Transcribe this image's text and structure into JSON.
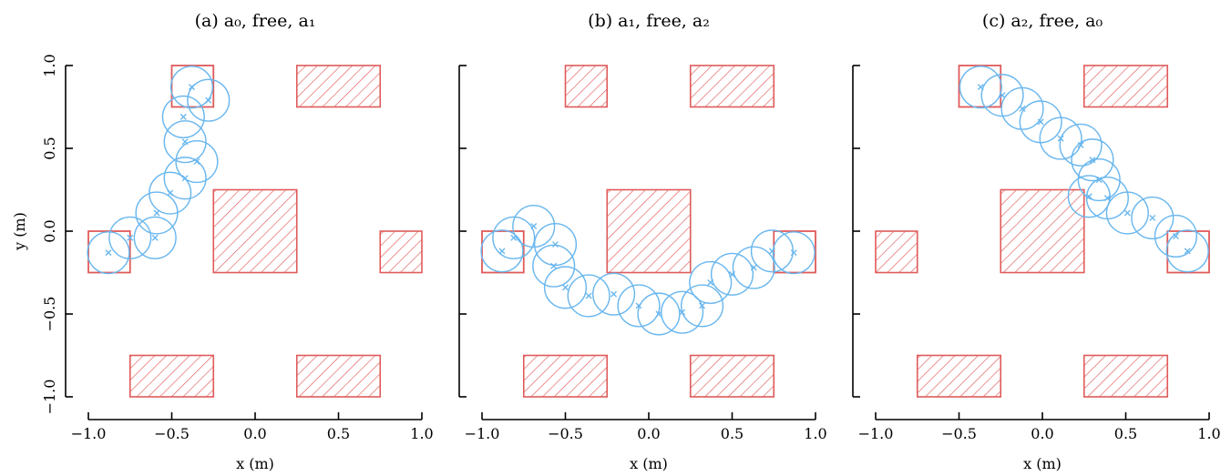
{
  "colors": {
    "obstacle": "#e05a5a",
    "robot": "#6ab7ee",
    "axis": "#000000"
  },
  "chart_data": [
    {
      "type": "scatter",
      "title": "(a) a₀, free, a₁",
      "xlabel": "x (m)",
      "ylabel": "y (m)",
      "xlim": [
        -1.0,
        1.0
      ],
      "ylim": [
        -1.0,
        1.0
      ],
      "xticks": [
        "−1.0",
        "−0.5",
        "0.0",
        "0.5",
        "1.0"
      ],
      "yticks": [
        "−1.0",
        "−0.5",
        "0.0",
        "0.5",
        "1.0"
      ],
      "robot_radius": 0.125,
      "obstacles": [
        {
          "x0": -0.75,
          "y0": -1.0,
          "x1": -0.25,
          "y1": -0.75
        },
        {
          "x0": 0.25,
          "y0": -1.0,
          "x1": 0.75,
          "y1": -0.75
        },
        {
          "x0": -0.25,
          "y0": -0.25,
          "x1": 0.25,
          "y1": 0.25
        },
        {
          "x0": 0.75,
          "y0": -0.25,
          "x1": 1.0,
          "y1": 0.0
        },
        {
          "x0": 0.25,
          "y0": 0.75,
          "x1": 0.75,
          "y1": 1.0
        }
      ],
      "goals": [
        {
          "x0": -1.0,
          "y0": -0.25,
          "x1": -0.75,
          "y1": 0.0
        },
        {
          "x0": -0.5,
          "y0": 0.75,
          "x1": -0.25,
          "y1": 1.0
        }
      ],
      "trajectory": [
        {
          "x": -0.88,
          "y": -0.13
        },
        {
          "x": -0.75,
          "y": -0.04
        },
        {
          "x": -0.6,
          "y": -0.04
        },
        {
          "x": -0.59,
          "y": 0.11
        },
        {
          "x": -0.51,
          "y": 0.23
        },
        {
          "x": -0.42,
          "y": 0.32
        },
        {
          "x": -0.35,
          "y": 0.42
        },
        {
          "x": -0.42,
          "y": 0.54
        },
        {
          "x": -0.43,
          "y": 0.69
        },
        {
          "x": -0.28,
          "y": 0.79
        },
        {
          "x": -0.38,
          "y": 0.87
        }
      ]
    },
    {
      "type": "scatter",
      "title": "(b) a₁, free, a₂",
      "xlabel": "x (m)",
      "ylabel": "",
      "xlim": [
        -1.0,
        1.0
      ],
      "ylim": [
        -1.0,
        1.0
      ],
      "xticks": [
        "−1.0",
        "−0.5",
        "0.0",
        "0.5",
        "1.0"
      ],
      "yticks": [],
      "robot_radius": 0.125,
      "obstacles": [
        {
          "x0": -0.75,
          "y0": -1.0,
          "x1": -0.25,
          "y1": -0.75
        },
        {
          "x0": 0.25,
          "y0": -1.0,
          "x1": 0.75,
          "y1": -0.75
        },
        {
          "x0": -0.25,
          "y0": -0.25,
          "x1": 0.25,
          "y1": 0.25
        },
        {
          "x0": -0.5,
          "y0": 0.75,
          "x1": -0.25,
          "y1": 1.0
        },
        {
          "x0": 0.25,
          "y0": 0.75,
          "x1": 0.75,
          "y1": 1.0
        }
      ],
      "goals": [
        {
          "x0": -1.0,
          "y0": -0.25,
          "x1": -0.75,
          "y1": 0.0
        },
        {
          "x0": 0.75,
          "y0": -0.25,
          "x1": 1.0,
          "y1": 0.0
        }
      ],
      "trajectory": [
        {
          "x": -0.88,
          "y": -0.12
        },
        {
          "x": -0.81,
          "y": -0.04
        },
        {
          "x": -0.69,
          "y": 0.03
        },
        {
          "x": -0.56,
          "y": -0.08
        },
        {
          "x": -0.57,
          "y": -0.21
        },
        {
          "x": -0.5,
          "y": -0.34
        },
        {
          "x": -0.36,
          "y": -0.39
        },
        {
          "x": -0.21,
          "y": -0.38
        },
        {
          "x": -0.06,
          "y": -0.45
        },
        {
          "x": 0.06,
          "y": -0.5
        },
        {
          "x": 0.2,
          "y": -0.49
        },
        {
          "x": 0.32,
          "y": -0.45
        },
        {
          "x": 0.37,
          "y": -0.31
        },
        {
          "x": 0.5,
          "y": -0.26
        },
        {
          "x": 0.63,
          "y": -0.22
        },
        {
          "x": 0.74,
          "y": -0.12
        },
        {
          "x": 0.87,
          "y": -0.13
        }
      ]
    },
    {
      "type": "scatter",
      "title": "(c) a₂, free, a₀",
      "xlabel": "x (m)",
      "ylabel": "",
      "xlim": [
        -1.0,
        1.0
      ],
      "ylim": [
        -1.0,
        1.0
      ],
      "xticks": [
        "−1.0",
        "−0.5",
        "0.0",
        "0.5",
        "1.0"
      ],
      "yticks": [],
      "robot_radius": 0.125,
      "obstacles": [
        {
          "x0": -0.75,
          "y0": -1.0,
          "x1": -0.25,
          "y1": -0.75
        },
        {
          "x0": 0.25,
          "y0": -1.0,
          "x1": 0.75,
          "y1": -0.75
        },
        {
          "x0": -1.0,
          "y0": -0.25,
          "x1": -0.75,
          "y1": 0.0
        },
        {
          "x0": -0.25,
          "y0": -0.25,
          "x1": 0.25,
          "y1": 0.25
        },
        {
          "x0": 0.25,
          "y0": 0.75,
          "x1": 0.75,
          "y1": 1.0
        }
      ],
      "goals": [
        {
          "x0": -0.5,
          "y0": 0.75,
          "x1": -0.25,
          "y1": 1.0
        },
        {
          "x0": 0.75,
          "y0": -0.25,
          "x1": 1.0,
          "y1": 0.0
        }
      ],
      "trajectory": [
        {
          "x": -0.37,
          "y": 0.87
        },
        {
          "x": -0.24,
          "y": 0.82
        },
        {
          "x": -0.12,
          "y": 0.74
        },
        {
          "x": -0.01,
          "y": 0.66
        },
        {
          "x": 0.11,
          "y": 0.56
        },
        {
          "x": 0.23,
          "y": 0.52
        },
        {
          "x": 0.3,
          "y": 0.43
        },
        {
          "x": 0.34,
          "y": 0.31
        },
        {
          "x": 0.28,
          "y": 0.21
        },
        {
          "x": 0.39,
          "y": 0.2
        },
        {
          "x": 0.51,
          "y": 0.11
        },
        {
          "x": 0.66,
          "y": 0.08
        },
        {
          "x": 0.8,
          "y": -0.03
        },
        {
          "x": 0.87,
          "y": -0.12
        }
      ]
    }
  ]
}
